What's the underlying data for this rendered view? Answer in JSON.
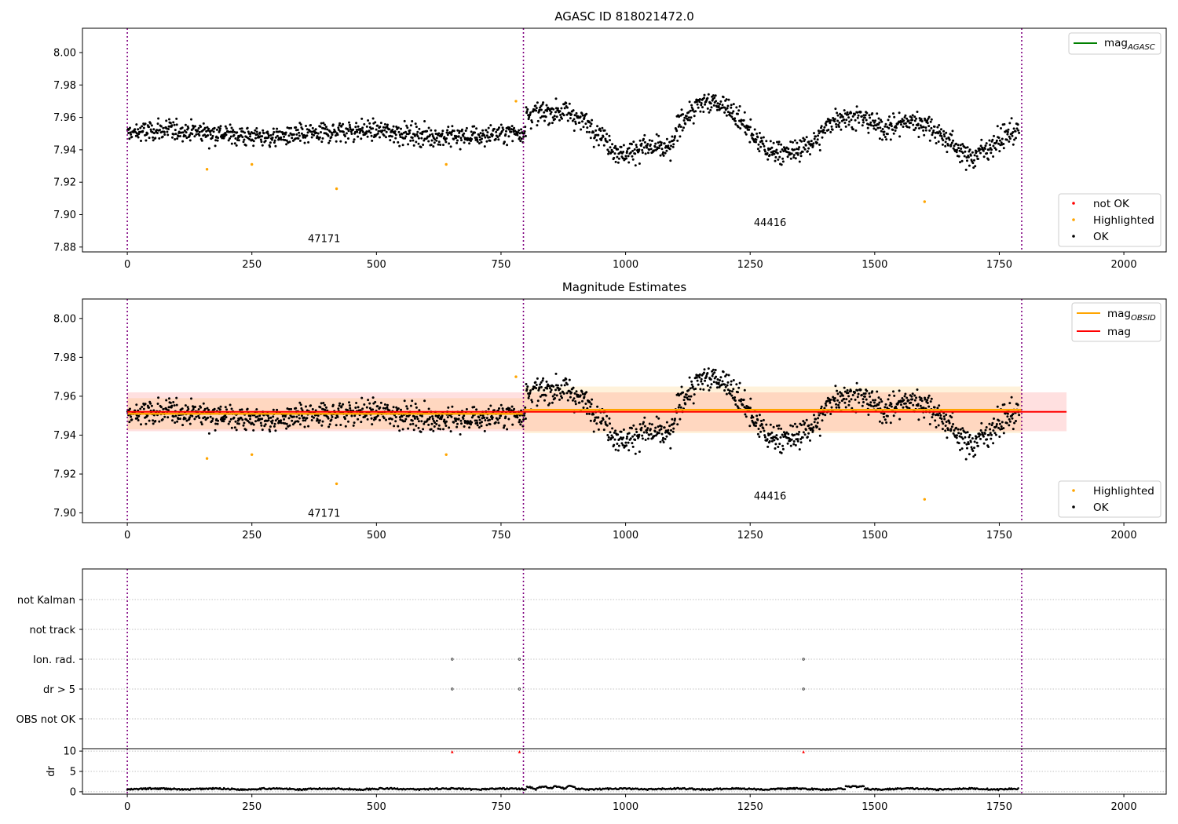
{
  "chart_data": [
    {
      "type": "scatter",
      "title": "AGASC ID 818021472.0",
      "xlim": [
        -90,
        2085
      ],
      "ylim": [
        7.877,
        8.015
      ],
      "xticks": [
        0,
        250,
        500,
        750,
        1000,
        1250,
        1500,
        1750,
        2000
      ],
      "yticks": [
        7.88,
        7.9,
        7.92,
        7.94,
        7.96,
        7.98,
        8.0
      ],
      "vlines": [
        0,
        795,
        1795
      ],
      "annotations": [
        {
          "text": "47171",
          "x": 395,
          "y": 7.883
        },
        {
          "text": "44416",
          "x": 1290,
          "y": 7.893
        }
      ],
      "legend_lines": [
        {
          "label": "mag",
          "sub": "AGASC",
          "color": "#008000"
        }
      ],
      "legend_points": [
        {
          "label": "not OK",
          "color": "#ff0000"
        },
        {
          "label": "Highlighted",
          "color": "#ffa500"
        },
        {
          "label": "OK",
          "color": "#000000"
        }
      ],
      "highlighted": [
        {
          "x": 160,
          "y": 7.928
        },
        {
          "x": 250,
          "y": 7.931
        },
        {
          "x": 420,
          "y": 7.916
        },
        {
          "x": 640,
          "y": 7.931
        },
        {
          "x": 780,
          "y": 7.97
        },
        {
          "x": 1600,
          "y": 7.908
        }
      ]
    },
    {
      "type": "scatter",
      "title": "Magnitude Estimates",
      "xlim": [
        -90,
        2085
      ],
      "ylim": [
        7.895,
        8.01
      ],
      "xticks": [
        0,
        250,
        500,
        750,
        1000,
        1250,
        1500,
        1750,
        2000
      ],
      "yticks": [
        7.9,
        7.92,
        7.94,
        7.96,
        7.98,
        8.0
      ],
      "vlines": [
        0,
        795,
        1795
      ],
      "annotations": [
        {
          "text": "47171",
          "x": 395,
          "y": 7.898
        },
        {
          "text": "44416",
          "x": 1290,
          "y": 7.907
        }
      ],
      "legend_lines": [
        {
          "label": "mag",
          "sub": "OBSID",
          "color": "#ffa500"
        },
        {
          "label": "mag",
          "sub": "",
          "color": "#ff0000"
        }
      ],
      "legend_points": [
        {
          "label": "Highlighted",
          "color": "#ffa500"
        },
        {
          "label": "OK",
          "color": "#000000"
        }
      ],
      "mag": {
        "value": 7.952,
        "band": [
          7.942,
          7.962
        ],
        "xrange": [
          0,
          1885
        ]
      },
      "mag_obsid": [
        {
          "xrange": [
            0,
            795
          ],
          "value": 7.951,
          "band": [
            7.943,
            7.959
          ]
        },
        {
          "xrange": [
            795,
            1795
          ],
          "value": 7.953,
          "band": [
            7.941,
            7.965
          ]
        }
      ],
      "highlighted": [
        {
          "x": 160,
          "y": 7.928
        },
        {
          "x": 250,
          "y": 7.93
        },
        {
          "x": 420,
          "y": 7.915
        },
        {
          "x": 640,
          "y": 7.93
        },
        {
          "x": 780,
          "y": 7.97
        },
        {
          "x": 1600,
          "y": 7.907
        }
      ]
    },
    {
      "type": "scatter",
      "xlim": [
        -90,
        2085
      ],
      "xticks": [
        0,
        250,
        500,
        750,
        1000,
        1250,
        1500,
        1750,
        2000
      ],
      "vlines": [
        0,
        795,
        1795
      ],
      "flag_labels": [
        "not Kalman",
        "not track",
        "Ion. rad.",
        "dr > 5",
        "OBS not OK"
      ],
      "flag_points": [
        {
          "flag": "Ion. rad.",
          "x": [
            652,
            787,
            1357
          ]
        },
        {
          "flag": "dr > 5",
          "x": [
            652,
            787,
            1357
          ]
        }
      ]
    },
    {
      "type": "scatter",
      "ylabel": "dr",
      "xlim": [
        -90,
        2085
      ],
      "ylim": [
        -0.6,
        10.6
      ],
      "xticks": [
        0,
        250,
        500,
        750,
        1000,
        1250,
        1500,
        1750,
        2000
      ],
      "yticks": [
        0,
        5,
        10
      ],
      "vlines": [
        0,
        795,
        1795
      ],
      "dr_flagged": [
        {
          "x": 652,
          "y": 9.8
        },
        {
          "x": 787,
          "y": 9.8
        },
        {
          "x": 1357,
          "y": 9.8
        }
      ]
    }
  ]
}
